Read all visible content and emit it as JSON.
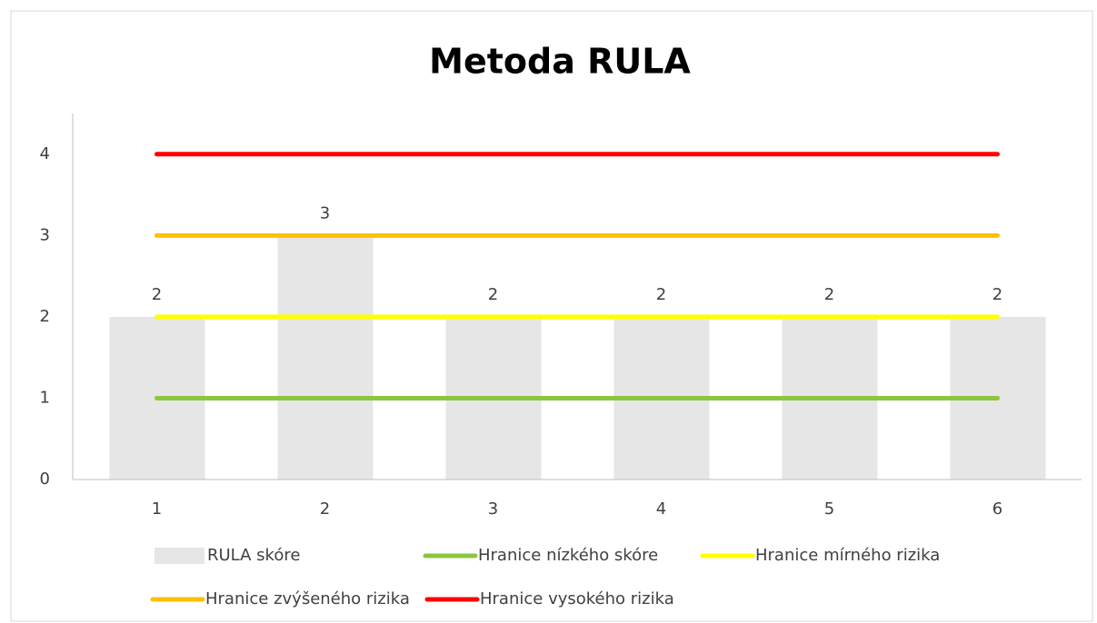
{
  "chart_data": {
    "type": "bar",
    "title": "Metoda RULA",
    "categories": [
      "1",
      "2",
      "3",
      "4",
      "5",
      "6"
    ],
    "series": [
      {
        "name": "RULA skóre",
        "type": "bar",
        "color": "#e6e6e6",
        "values": [
          2,
          3,
          2,
          2,
          2,
          2
        ]
      },
      {
        "name": "Hranice nízkého skóre",
        "type": "line",
        "color": "#8cc63f",
        "values": [
          1,
          1,
          1,
          1,
          1,
          1
        ]
      },
      {
        "name": "Hranice mírného rizika",
        "type": "line",
        "color": "#ffff00",
        "values": [
          2,
          2,
          2,
          2,
          2,
          2
        ]
      },
      {
        "name": "Hranice zvýšeného rizika",
        "type": "line",
        "color": "#ffc000",
        "values": [
          3,
          3,
          3,
          3,
          3,
          3
        ]
      },
      {
        "name": "Hranice vysokého rizika",
        "type": "line",
        "color": "#ff0000",
        "values": [
          4,
          4,
          4,
          4,
          4,
          4
        ]
      }
    ],
    "ylim": [
      0,
      4.5
    ],
    "yticks": [
      0,
      1,
      2,
      3,
      4
    ],
    "grid": false,
    "legend": "bottom"
  }
}
